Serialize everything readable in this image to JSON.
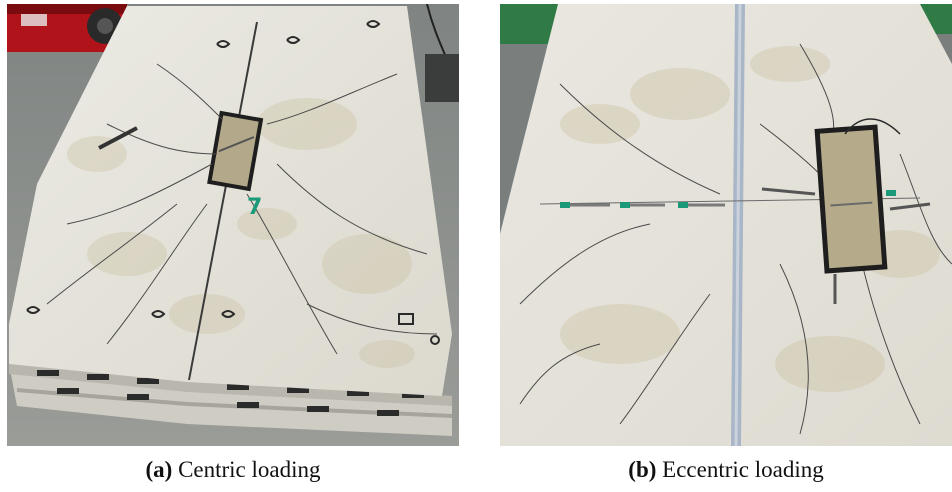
{
  "figure": {
    "panels": [
      {
        "id": "a",
        "letter": "(a)",
        "caption": "Centric loading",
        "marking": "7"
      },
      {
        "id": "b",
        "letter": "(b)",
        "caption": "Eccentric loading"
      }
    ]
  },
  "colors": {
    "slab_surface": "#e6e4dc",
    "background_floor": "#8a8d8a",
    "crack_lines": "#3a3a3a",
    "forklift_red": "#b0141a",
    "green_wall": "#2f7a45",
    "marker_green": "#1a9a78",
    "joint_blue": "#a9b6c7"
  }
}
